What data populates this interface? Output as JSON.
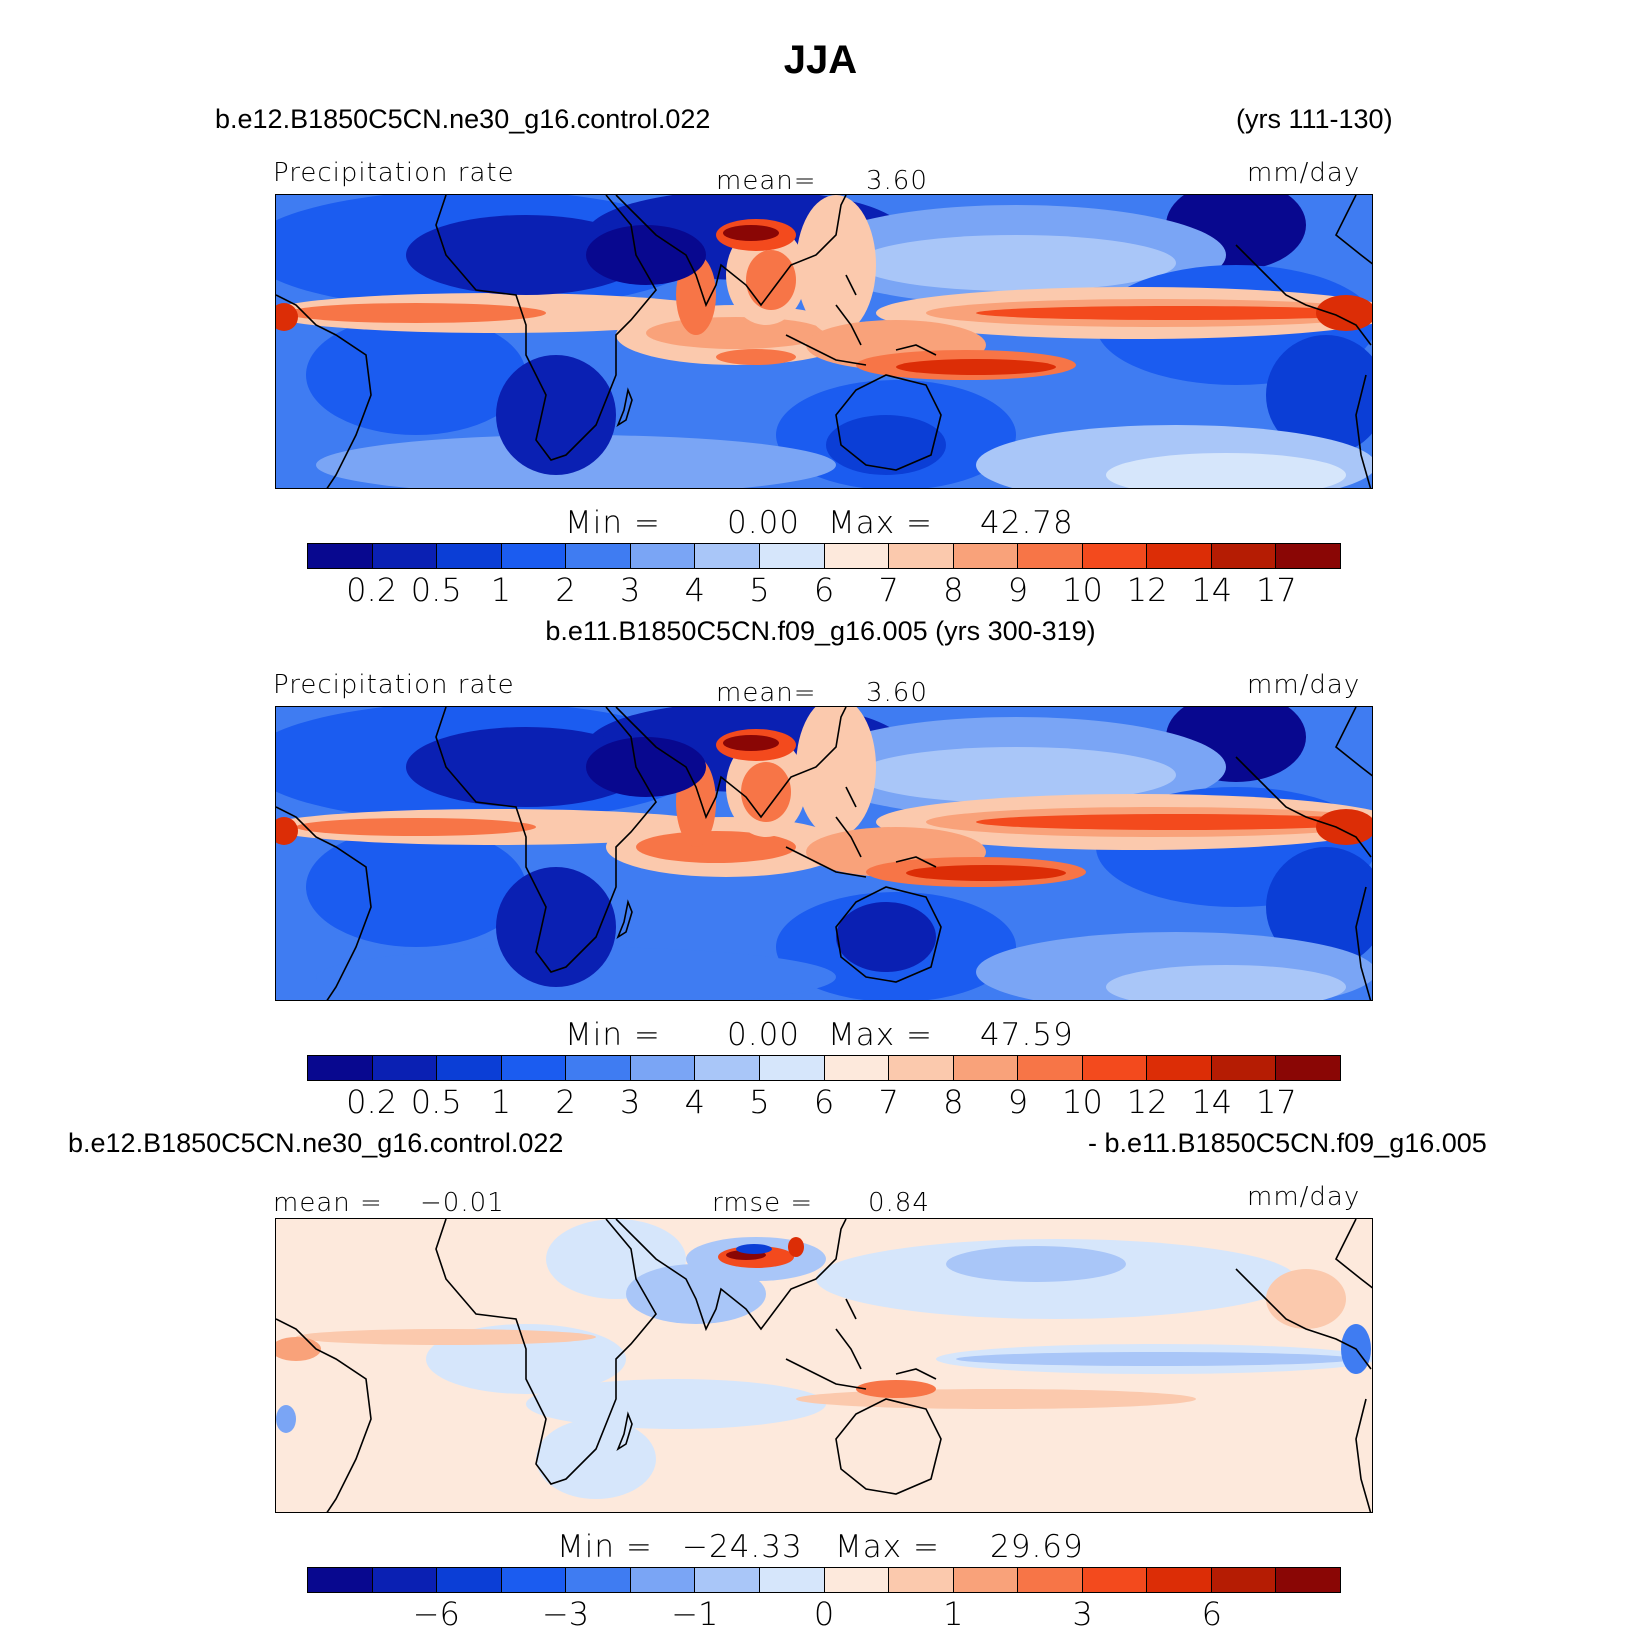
{
  "title": "JJA",
  "colors": [
    "#08088f",
    "#0a20b3",
    "#0b3ed6",
    "#1b5cf0",
    "#3f7cf2",
    "#7aa5f5",
    "#a9c6f8",
    "#d6e6fb",
    "#fde9dc",
    "#fbc9ad",
    "#f9a27a",
    "#f77547",
    "#f34a1d",
    "#dc2d06",
    "#b51c03",
    "#8a0605"
  ],
  "panel1": {
    "case": "b.e12.B1850C5CN.ne30_g16.control.022",
    "years": "(yrs 111-130)",
    "variable": "Precipitation rate",
    "mean_label": "mean=",
    "mean_value": "3.60",
    "units": "mm/day",
    "min_label": "Min =",
    "min_value": "0.00",
    "max_label": "Max =",
    "max_value": "42.78",
    "levels": [
      "0.2",
      "0.5",
      "1",
      "2",
      "3",
      "4",
      "5",
      "6",
      "7",
      "8",
      "9",
      "10",
      "12",
      "14",
      "17"
    ]
  },
  "panel2": {
    "case": "b.e11.B1850C5CN.f09_g16.005 (yrs 300-319)",
    "variable": "Precipitation rate",
    "mean_label": "mean=",
    "mean_value": "3.60",
    "units": "mm/day",
    "min_label": "Min =",
    "min_value": "0.00",
    "max_label": "Max =",
    "max_value": "47.59",
    "levels": [
      "0.2",
      "0.5",
      "1",
      "2",
      "3",
      "4",
      "5",
      "6",
      "7",
      "8",
      "9",
      "10",
      "12",
      "14",
      "17"
    ]
  },
  "panel3": {
    "case_a": "b.e12.B1850C5CN.ne30_g16.control.022",
    "case_b": "- b.e11.B1850C5CN.f09_g16.005",
    "mean_label": "mean =",
    "mean_value": "−0.01",
    "rmse_label": "rmse =",
    "rmse_value": "0.84",
    "units": "mm/day",
    "min_label": "Min =",
    "min_value": "−24.33",
    "max_label": "Max =",
    "max_value": "29.69",
    "levels": [
      "−6",
      "−3",
      "−1",
      "0",
      "1",
      "3",
      "6"
    ]
  }
}
